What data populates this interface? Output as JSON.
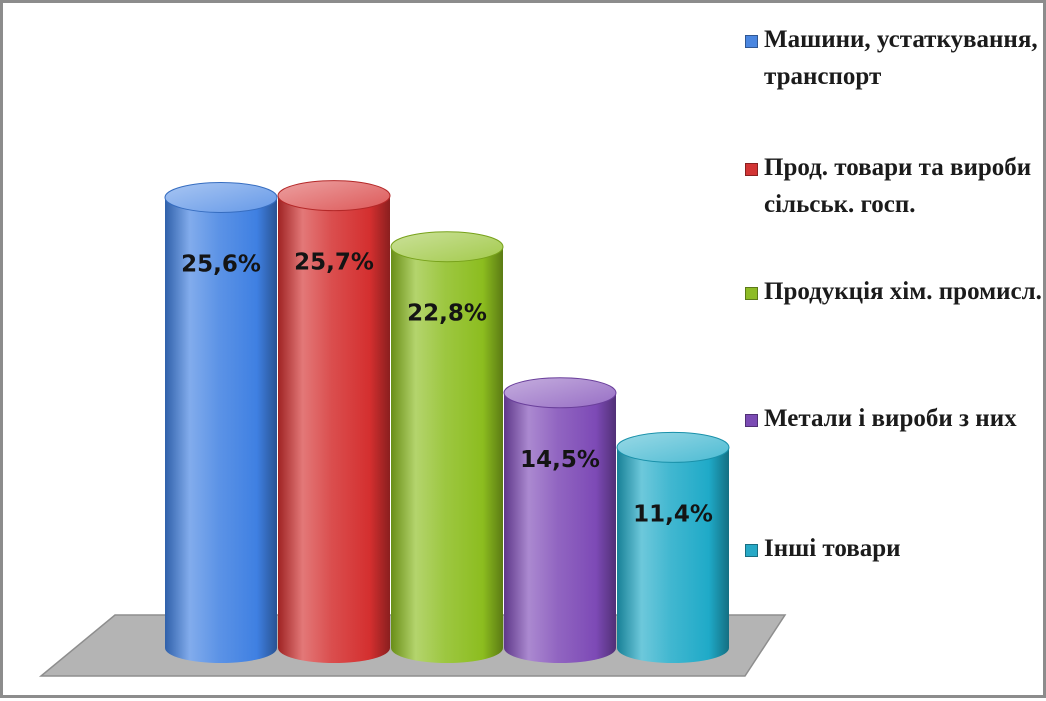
{
  "chart_data": {
    "type": "bar",
    "style": "3d-cylinder",
    "categories": [
      "Машини, устаткування, транспорт",
      "Прод. товари та вироби сільськ. госп.",
      "Продукція хім. промисл.",
      "Метали і вироби з них",
      "Інші товари"
    ],
    "values": [
      25.6,
      25.7,
      22.8,
      14.5,
      11.4
    ],
    "value_labels": [
      "25,6%",
      "25,7%",
      "22,8%",
      "14,5%",
      "11,4%"
    ],
    "colors": [
      "#3f80e2",
      "#d42f2f",
      "#8cbd1f",
      "#7d4ab6",
      "#1faac8"
    ],
    "title": "",
    "xlabel": "",
    "ylabel": "",
    "ylim": [
      0,
      27
    ],
    "grid": false,
    "legend_position": "right",
    "floor_color": "#b4b4b4"
  },
  "legend": [
    {
      "label": "Машини, устаткування, транспорт",
      "color": "#4a86e0"
    },
    {
      "label": "Прод. товари та вироби сільськ. госп.",
      "color": "#d23434"
    },
    {
      "label": "Продукція хім. промисл.",
      "color": "#8dbb25"
    },
    {
      "label": "Метали і вироби з них",
      "color": "#7b4bb4"
    },
    {
      "label": "Інші товари",
      "color": "#27a9c6"
    }
  ]
}
